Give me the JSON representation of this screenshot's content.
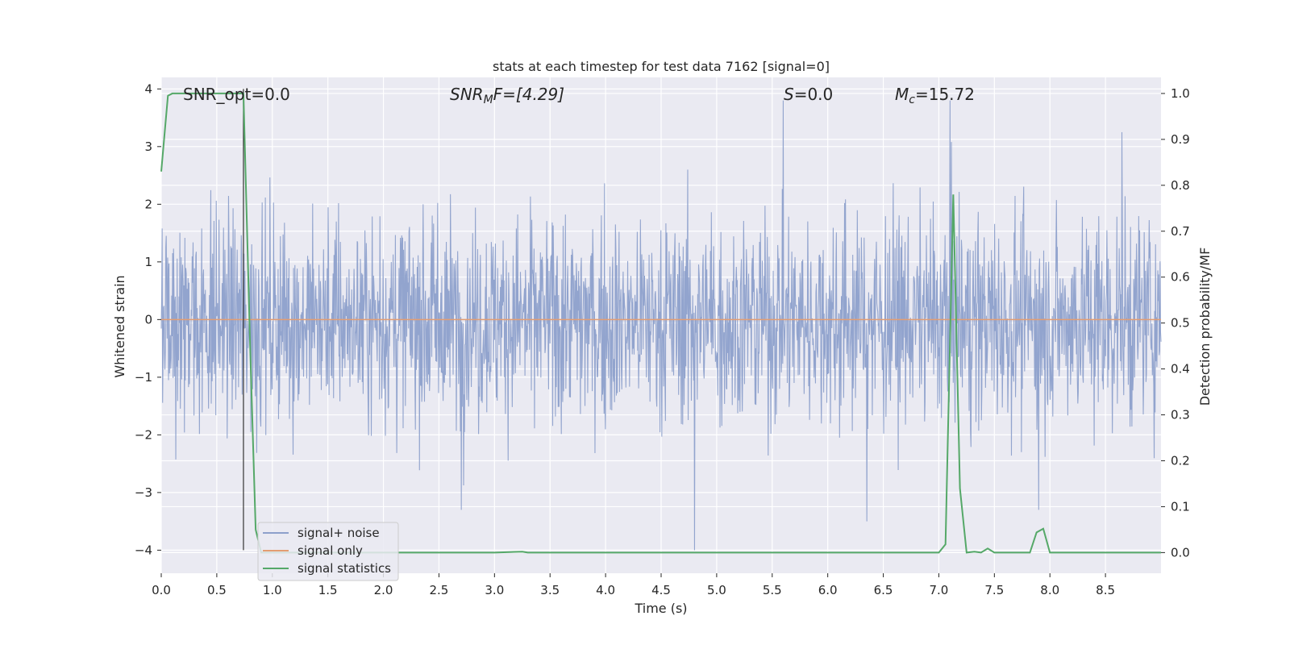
{
  "chart_data": {
    "type": "line",
    "title": "stats at each timestep for test data 7162 [signal=0]",
    "xlabel": "Time (s)",
    "ylabel": "Whitened strain",
    "ylabel_right": "Detection probability/MF",
    "xlim": [
      0.0,
      9.0
    ],
    "ylim": [
      -4.4,
      4.2
    ],
    "ylim_right": [
      -0.045,
      1.035
    ],
    "x_ticks": [
      "0.0",
      "0.5",
      "1.0",
      "1.5",
      "2.0",
      "2.5",
      "3.0",
      "3.5",
      "4.0",
      "4.5",
      "5.0",
      "5.5",
      "6.0",
      "6.5",
      "7.0",
      "7.5",
      "8.0",
      "8.5"
    ],
    "y_ticks": [
      "4",
      "3",
      "2",
      "1",
      "0",
      "−1",
      "−2",
      "−3",
      "−4"
    ],
    "y_ticks_right": [
      "1.0",
      "0.9",
      "0.8",
      "0.7",
      "0.6",
      "0.5",
      "0.4",
      "0.3",
      "0.2",
      "0.1",
      "0.0"
    ],
    "grid": true,
    "legend_position": "lower-left",
    "legend": [
      {
        "label": "signal+ noise",
        "color": "#8da0cb"
      },
      {
        "label": "signal only",
        "color": "#e39d72"
      },
      {
        "label": "signal statistics",
        "color": "#55a868"
      }
    ],
    "annotations": {
      "snr_opt": "SNR_opt=0.0",
      "snr_mf_base": "SNR",
      "snr_mf_sub": "M",
      "snr_mf_rest": "F=[4.29]",
      "s_italic": "S",
      "s_rest": "=0.0",
      "mc_base": "M",
      "mc_sub": "c",
      "mc_rest": "=15.72"
    },
    "marker_line_x": 0.74,
    "series": [
      {
        "name": "signal+ noise",
        "axis": "left",
        "color": "#8da0cb",
        "description_values": "whitened noise, approx. Gaussian with std ~0.9, range about -4 to 3.8",
        "x_range": [
          0.0,
          9.0
        ],
        "amplitude_std": 0.9,
        "extremes": [
          [
            4.8,
            -4.0
          ],
          [
            5.6,
            3.8
          ],
          [
            7.1,
            3.8
          ],
          [
            6.35,
            -3.5
          ],
          [
            2.7,
            -3.3
          ],
          [
            7.9,
            -3.3
          ],
          [
            8.65,
            3.25
          ]
        ]
      },
      {
        "name": "signal only",
        "axis": "left",
        "color": "#e39d72",
        "x": [
          0.0,
          9.0
        ],
        "y": [
          0.0,
          0.0
        ]
      },
      {
        "name": "signal statistics",
        "axis": "right",
        "color": "#55a868",
        "x": [
          0.0,
          0.06,
          0.1,
          0.2,
          0.7,
          0.74,
          0.8,
          0.85,
          0.9,
          1.0,
          2.0,
          3.0,
          3.25,
          3.3,
          4.0,
          7.0,
          7.06,
          7.13,
          7.19,
          7.25,
          7.32,
          7.38,
          7.44,
          7.5,
          7.82,
          7.88,
          7.94,
          8.0,
          9.0
        ],
        "y": [
          0.83,
          0.995,
          1.0,
          1.0,
          1.0,
          1.0,
          0.45,
          0.05,
          0.0,
          0.0,
          0.0,
          0.0,
          0.002,
          0.0,
          0.0,
          0.0,
          0.018,
          0.78,
          0.14,
          0.0,
          0.002,
          0.0,
          0.009,
          0.0,
          0.0,
          0.044,
          0.052,
          0.0,
          0.0
        ]
      }
    ]
  }
}
